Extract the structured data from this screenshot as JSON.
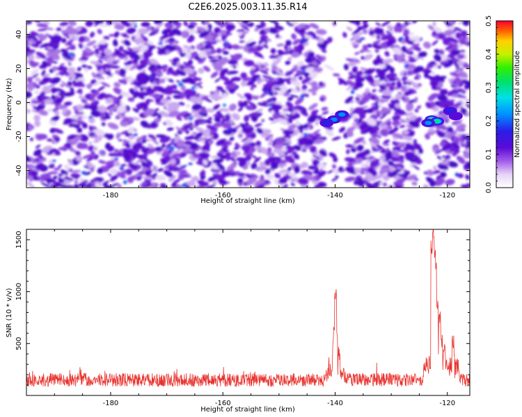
{
  "title": "C2E6.2025.003.11.35.R14",
  "chart_data": [
    {
      "type": "heatmap",
      "xlabel": "Height of straight line (km)",
      "ylabel": "Frequency (Hz)",
      "xlim": [
        -195,
        -116
      ],
      "ylim": [
        -50,
        48
      ],
      "xticks": [
        -180,
        -160,
        -140,
        -120
      ],
      "yticks": [
        -40,
        -20,
        0,
        20,
        40
      ],
      "colorbar": {
        "label": "Normalized spectral amplitude",
        "range": [
          0,
          0.5
        ],
        "ticks": [
          0,
          0.1,
          0.2,
          0.3,
          0.4,
          0.5
        ],
        "tick_labels": [
          "0.0",
          "0.1",
          "0.2",
          "0.3",
          "0.4",
          "0.5"
        ]
      },
      "hotspots": [
        {
          "x": -140.2,
          "y": -10,
          "amplitude": 0.24
        },
        {
          "x": -138.8,
          "y": -7,
          "amplitude": 0.22
        },
        {
          "x": -141.5,
          "y": -12,
          "amplitude": 0.2
        },
        {
          "x": -122.8,
          "y": -10,
          "amplitude": 0.38
        },
        {
          "x": -121.8,
          "y": -11,
          "amplitude": 0.35
        },
        {
          "x": -123.4,
          "y": -12,
          "amplitude": 0.22
        },
        {
          "x": -119.5,
          "y": -5,
          "amplitude": 0.2
        },
        {
          "x": -118.5,
          "y": -8,
          "amplitude": 0.15
        }
      ],
      "low_signal_bands": [
        [
          -142.0,
          -137.5
        ],
        [
          -125.0,
          -123.0
        ]
      ]
    },
    {
      "type": "line",
      "xlabel": "Height of straight line (km)",
      "ylabel": "SNR (10 * v/v)",
      "xlim": [
        -195,
        -116
      ],
      "ylim": [
        0,
        1600
      ],
      "xticks": [
        -180,
        -160,
        -140,
        -120
      ],
      "yticks": [
        500,
        1000,
        1500
      ],
      "color": "#e8322d",
      "baseline": {
        "mean": 150,
        "noise": 65
      },
      "peaks": [
        {
          "x": -140.3,
          "y": 480
        },
        {
          "x": -140.1,
          "y": 630
        },
        {
          "x": -139.9,
          "y": 990
        },
        {
          "x": -139.7,
          "y": 560
        },
        {
          "x": -139.3,
          "y": 410
        },
        {
          "x": -122.8,
          "y": 1400
        },
        {
          "x": -122.5,
          "y": 1600
        },
        {
          "x": -122.3,
          "y": 1350
        },
        {
          "x": -122.1,
          "y": 1200
        },
        {
          "x": -121.8,
          "y": 900
        },
        {
          "x": -121.4,
          "y": 780
        },
        {
          "x": -121.0,
          "y": 560
        },
        {
          "x": -120.5,
          "y": 450
        },
        {
          "x": -119.0,
          "y": 520
        }
      ]
    }
  ]
}
